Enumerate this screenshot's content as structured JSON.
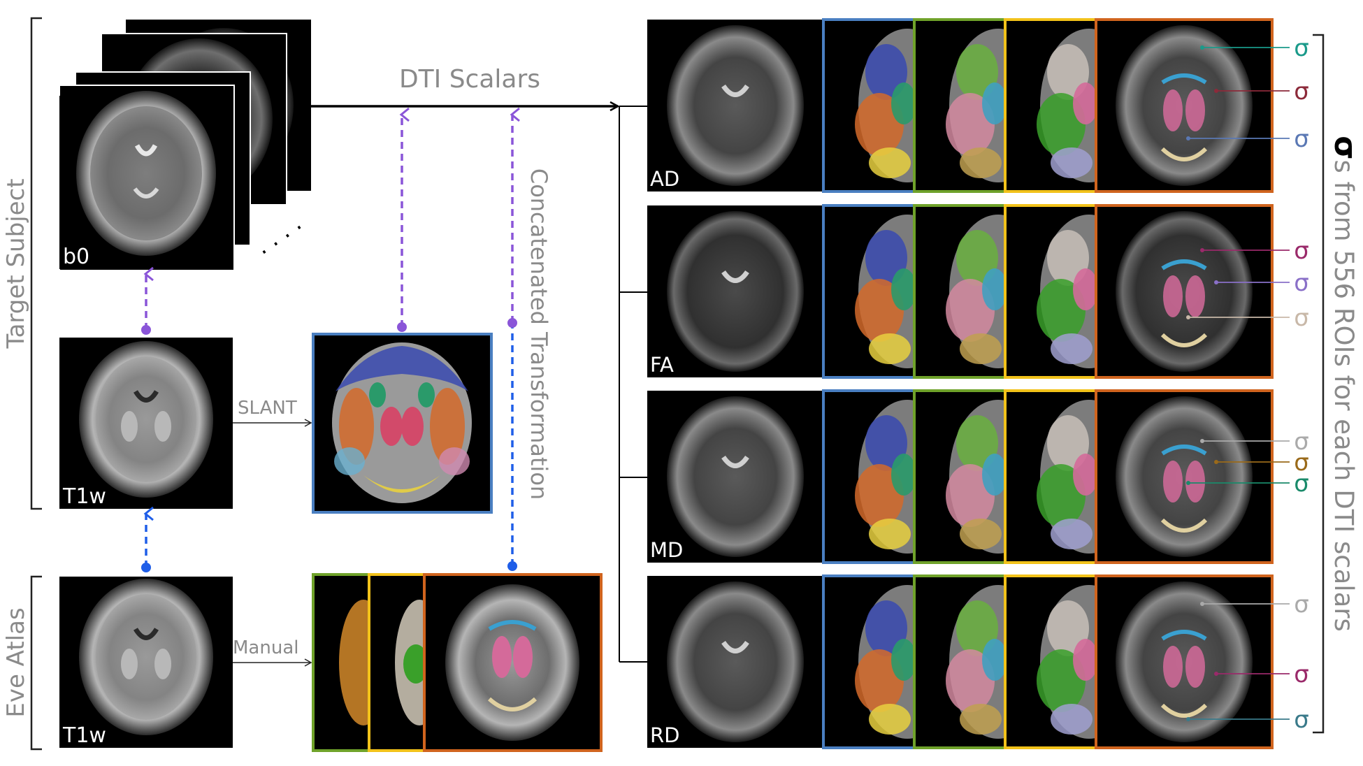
{
  "groups": {
    "target_subject": "Target Subject",
    "eve_atlas": "Eve Atlas"
  },
  "images": {
    "b0": "b0",
    "target_t1w": "T1w",
    "atlas_t1w": "T1w"
  },
  "arrows": {
    "dti_scalars": "DTI Scalars",
    "slant": "SLANT",
    "manual": "Manual",
    "concatenated": "Concatenated Transformation"
  },
  "scalars": [
    "AD",
    "FA",
    "MD",
    "RD"
  ],
  "sigma": {
    "symbol": "σ",
    "rows": [
      {
        "labels": [
          {
            "color": "#1a9a8a"
          },
          {
            "color": "#8c2a3a"
          },
          {
            "color": "#5a78b4"
          }
        ]
      },
      {
        "labels": [
          {
            "color": "#9a2a6a"
          },
          {
            "color": "#8a70c8"
          },
          {
            "color": "#c8b8a8"
          }
        ]
      },
      {
        "labels": [
          {
            "color": "#aaaaaa"
          },
          {
            "color": "#9a6a1a"
          },
          {
            "color": "#1a8a6a"
          }
        ]
      },
      {
        "labels": [
          {
            "color": "#aaaaaa"
          },
          {
            "color": "#9a2a6a"
          },
          {
            "color": "#3a7a8a"
          }
        ]
      }
    ]
  },
  "side_label": {
    "symbol": "σ",
    "text": "s from 556 ROIs for each DTI scalars"
  },
  "colors": {
    "blue_frame": "#4a7fc1",
    "green_frame": "#6fa22a",
    "yellow_frame": "#f2c21a",
    "orange_frame": "#d0641e",
    "purple_arrow": "#8a55d8",
    "blue_arrow": "#1f5ee8",
    "text_gray": "#8a8a8a"
  }
}
